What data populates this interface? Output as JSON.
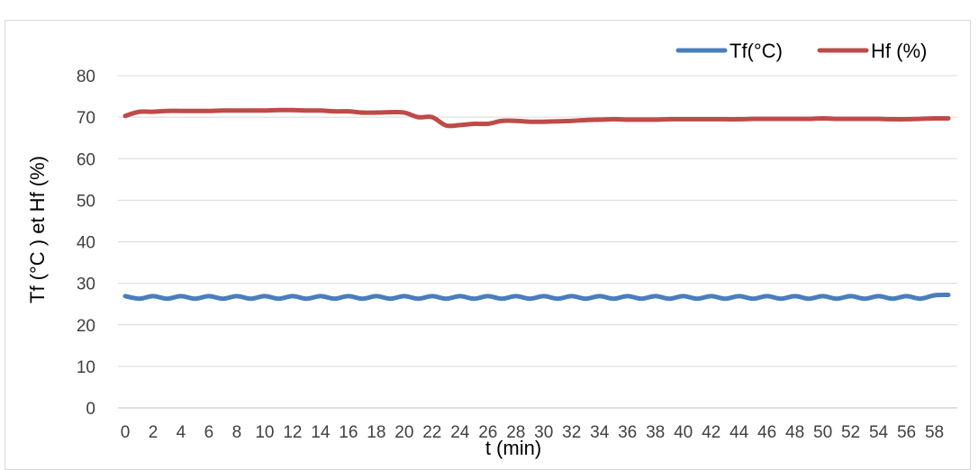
{
  "chart_data": {
    "type": "line",
    "title": "",
    "xlabel": "t (min)",
    "ylabel": "Tf (°C ) et  Hf (%)",
    "ylim": [
      0,
      80
    ],
    "yticks": [
      0,
      10,
      20,
      30,
      40,
      50,
      60,
      70,
      80
    ],
    "x": [
      0,
      1,
      2,
      3,
      4,
      5,
      6,
      7,
      8,
      9,
      10,
      11,
      12,
      13,
      14,
      15,
      16,
      17,
      18,
      19,
      20,
      21,
      22,
      23,
      24,
      25,
      26,
      27,
      28,
      29,
      30,
      31,
      32,
      33,
      34,
      35,
      36,
      37,
      38,
      39,
      40,
      41,
      42,
      43,
      44,
      45,
      46,
      47,
      48,
      49,
      50,
      51,
      52,
      53,
      54,
      55,
      56,
      57,
      58,
      59
    ],
    "xtick_labels": [
      "0",
      "2",
      "4",
      "6",
      "8",
      "10",
      "12",
      "14",
      "16",
      "18",
      "20",
      "22",
      "24",
      "26",
      "28",
      "30",
      "32",
      "34",
      "36",
      "38",
      "40",
      "42",
      "44",
      "46",
      "48",
      "50",
      "52",
      "54",
      "56",
      "58"
    ],
    "grid": "horizontal",
    "legend_position": "top-right",
    "series": [
      {
        "name": "Tf(°C)",
        "color": "#4a7ebb",
        "values": [
          26.9,
          26.3,
          26.9,
          26.3,
          26.9,
          26.3,
          26.9,
          26.3,
          26.9,
          26.3,
          26.9,
          26.3,
          26.9,
          26.3,
          26.9,
          26.3,
          26.9,
          26.3,
          26.9,
          26.3,
          26.9,
          26.3,
          26.9,
          26.3,
          26.9,
          26.3,
          26.9,
          26.3,
          26.9,
          26.3,
          26.9,
          26.3,
          26.9,
          26.3,
          26.9,
          26.3,
          26.9,
          26.3,
          26.9,
          26.3,
          26.9,
          26.3,
          26.9,
          26.3,
          26.9,
          26.3,
          26.9,
          26.3,
          26.9,
          26.3,
          26.9,
          26.3,
          26.9,
          26.3,
          26.9,
          26.3,
          26.9,
          26.3,
          27.1,
          27.2
        ]
      },
      {
        "name": "Hf (%)",
        "color": "#be4b48",
        "values": [
          70.3,
          71.3,
          71.3,
          71.5,
          71.5,
          71.5,
          71.5,
          71.6,
          71.6,
          71.6,
          71.6,
          71.7,
          71.7,
          71.6,
          71.6,
          71.4,
          71.4,
          71.1,
          71.1,
          71.2,
          71.1,
          70.0,
          70.0,
          68.0,
          68.1,
          68.4,
          68.4,
          69.1,
          69.1,
          68.9,
          68.9,
          69.0,
          69.1,
          69.3,
          69.4,
          69.5,
          69.4,
          69.4,
          69.4,
          69.5,
          69.5,
          69.5,
          69.5,
          69.5,
          69.5,
          69.6,
          69.6,
          69.6,
          69.6,
          69.6,
          69.7,
          69.6,
          69.6,
          69.6,
          69.6,
          69.5,
          69.5,
          69.6,
          69.7,
          69.7
        ]
      }
    ]
  }
}
